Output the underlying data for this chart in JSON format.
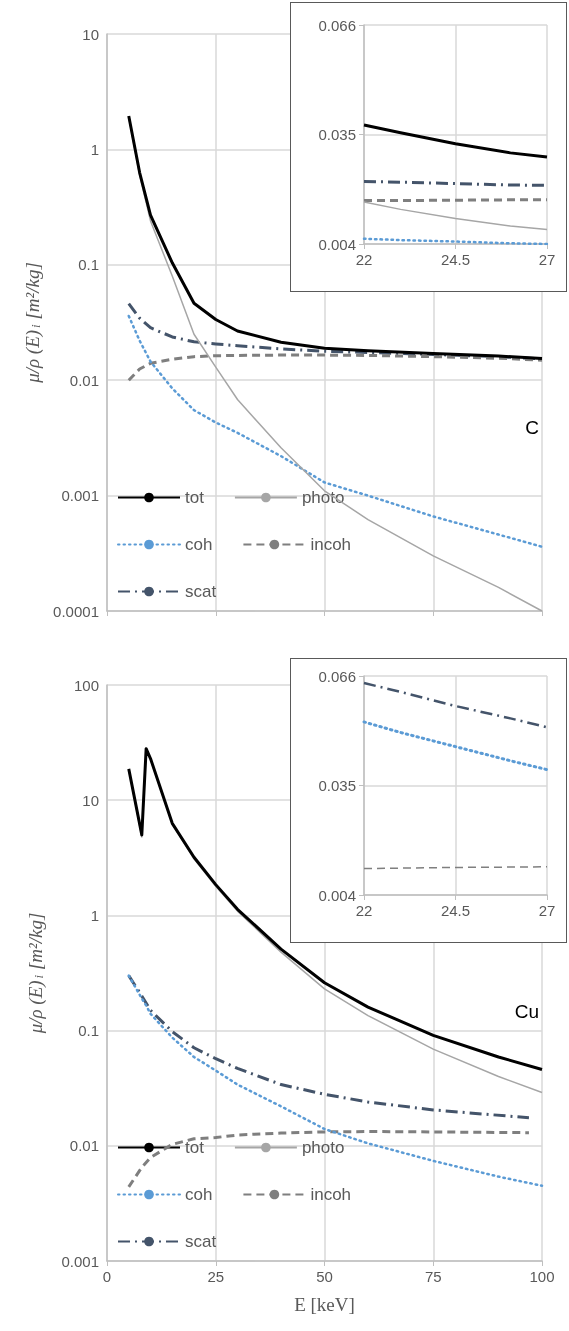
{
  "chart_data": [
    {
      "type": "line",
      "ylabel": "μ/ρ (E)$_{i}$ [m²/kg]",
      "log": "y",
      "grid": true,
      "legend": "bottom left",
      "tick_labels": "y",
      "xlim": [
        0,
        100
      ],
      "xticks": [
        0,
        25,
        50,
        75,
        100
      ],
      "ylim": [
        0.0001,
        10
      ],
      "yticks": [
        0.0001,
        0.001,
        0.01,
        0.1,
        1,
        10
      ],
      "annotations": [
        "C"
      ],
      "x": [
        5,
        7.5,
        10,
        15,
        20,
        25,
        30,
        40,
        50,
        60,
        75,
        90,
        100
      ],
      "series": [
        {
          "name": "tot",
          "color": "#000000",
          "line_style": "solid",
          "values": [
            1.95,
            0.63,
            0.27,
            0.104,
            0.0465,
            0.0336,
            0.0267,
            0.0213,
            0.0189,
            0.018,
            0.017,
            0.0162,
            0.0154
          ]
        },
        {
          "name": "photo",
          "color": "#a6a6a6",
          "line_style": "solid",
          "values": [
            1.9,
            0.6,
            0.24,
            0.08,
            0.025,
            0.013,
            0.0068,
            0.0026,
            0.0011,
            0.00062,
            0.0003,
            0.00016,
            0.0001
          ]
        },
        {
          "name": "coh",
          "color": "#5b9bd5",
          "line_style": "dotted",
          "values": [
            0.036,
            0.022,
            0.0145,
            0.0085,
            0.0055,
            0.0043,
            0.0035,
            0.0022,
            0.0013,
            0.001,
            0.00066,
            0.00046,
            0.00036
          ]
        },
        {
          "name": "incoh",
          "color": "#7f7f7f",
          "line_style": "dashed",
          "values": [
            0.01,
            0.0125,
            0.014,
            0.0152,
            0.016,
            0.0163,
            0.0164,
            0.0165,
            0.0165,
            0.0164,
            0.016,
            0.0155,
            0.0149
          ]
        },
        {
          "name": "scat",
          "color": "#44546a",
          "line_style": "dashdot",
          "values": [
            0.046,
            0.0345,
            0.0285,
            0.0237,
            0.0215,
            0.0206,
            0.0199,
            0.0187,
            0.0178,
            0.0174,
            0.0167,
            0.016,
            0.0153
          ]
        }
      ]
    },
    {
      "type": "line",
      "grid": true,
      "xlim": [
        22,
        27
      ],
      "xticks": [
        22,
        24.5,
        27
      ],
      "ylim": [
        0.004,
        0.066
      ],
      "yticks": [
        0.004,
        0.035,
        0.066
      ],
      "x": [
        22,
        23,
        24.5,
        26,
        27
      ],
      "series": [
        {
          "color": "#000000",
          "line_style": "solid",
          "values": [
            0.0377,
            0.0355,
            0.0324,
            0.0298,
            0.0286
          ]
        },
        {
          "color": "#a6a6a6",
          "line_style": "solid",
          "values": [
            0.0159,
            0.0138,
            0.0112,
            0.0091,
            0.0081
          ]
        },
        {
          "color": "#5b9bd5",
          "line_style": "dotted",
          "values": [
            0.0055,
            0.0051,
            0.0047,
            0.0042,
            0.004
          ]
        },
        {
          "color": "#7f7f7f",
          "line_style": "dashed",
          "values": [
            0.0163,
            0.0163,
            0.0164,
            0.0165,
            0.0165
          ]
        },
        {
          "color": "#44546a",
          "line_style": "dashdot",
          "values": [
            0.0217,
            0.0215,
            0.0211,
            0.0207,
            0.0206
          ]
        }
      ]
    },
    {
      "type": "line",
      "ylabel": "μ/ρ (E)$_{i}$ [m²/kg]",
      "xlabel": "E [keV]",
      "log": "y",
      "grid": true,
      "legend": "bottom left",
      "xlim": [
        0,
        100
      ],
      "xticks": [
        0,
        25,
        50,
        75,
        100
      ],
      "ylim": [
        0.001,
        100
      ],
      "yticks": [
        0.001,
        0.01,
        0.1,
        1,
        10,
        100
      ],
      "annotations": [
        "Cu"
      ],
      "x": [
        5,
        8,
        9,
        10,
        15,
        20,
        25,
        30,
        40,
        50,
        60,
        75,
        90,
        100
      ],
      "series": [
        {
          "name": "tot",
          "color": "#000000",
          "line_style": "solid",
          "values": [
            18.7,
            5,
            28,
            23,
            6.3,
            3.2,
            1.85,
            1.13,
            0.51,
            0.26,
            0.16,
            0.091,
            0.059,
            0.046
          ]
        },
        {
          "name": "photo",
          "color": "#a6a6a6",
          "line_style": "solid",
          "values": [
            18.4,
            4.8,
            27.7,
            22.7,
            6.2,
            3.1,
            1.79,
            1.09,
            0.48,
            0.23,
            0.135,
            0.069,
            0.04,
            0.029
          ]
        },
        {
          "name": "coh",
          "color": "#5b9bd5",
          "line_style": "dotted",
          "values": [
            0.3,
            0.19,
            0.165,
            0.14,
            0.087,
            0.059,
            0.045,
            0.034,
            0.022,
            0.014,
            0.0105,
            0.0074,
            0.0054,
            0.0045
          ]
        },
        {
          "name": "incoh",
          "color": "#7f7f7f",
          "line_style": "dashed",
          "x": [
            5,
            8,
            10,
            15,
            20,
            25,
            30,
            40,
            50,
            60,
            75,
            97
          ],
          "values": [
            0.0044,
            0.0065,
            0.0079,
            0.0103,
            0.0115,
            0.0118,
            0.0124,
            0.0129,
            0.0132,
            0.0133,
            0.0132,
            0.013
          ]
        },
        {
          "name": "scat",
          "color": "#44546a",
          "line_style": "dashdot",
          "x": [
            5,
            8,
            10,
            15,
            20,
            25,
            30,
            40,
            50,
            60,
            75,
            97
          ],
          "values": [
            0.3,
            0.2,
            0.15,
            0.098,
            0.071,
            0.057,
            0.047,
            0.034,
            0.028,
            0.024,
            0.0205,
            0.0175
          ]
        }
      ]
    },
    {
      "type": "line",
      "grid": true,
      "xlim": [
        22,
        27
      ],
      "xticks": [
        22,
        24.5,
        27
      ],
      "ylim": [
        0.004,
        0.066
      ],
      "yticks": [
        0.004,
        0.035,
        0.066
      ],
      "x": [
        22,
        23,
        24.5,
        26,
        27
      ],
      "series": [
        {
          "color": "#5b9bd5",
          "line_style": "dotted",
          "values": [
            0.053,
            0.05,
            0.046,
            0.042,
            0.0395
          ]
        },
        {
          "color": "#7f7f7f",
          "line_style": "dashed",
          "values": [
            0.0115,
            0.0116,
            0.0118,
            0.0119,
            0.012
          ]
        },
        {
          "color": "#44546a",
          "line_style": "dashdot",
          "values": [
            0.064,
            0.0615,
            0.0575,
            0.054,
            0.0515
          ]
        }
      ]
    }
  ]
}
